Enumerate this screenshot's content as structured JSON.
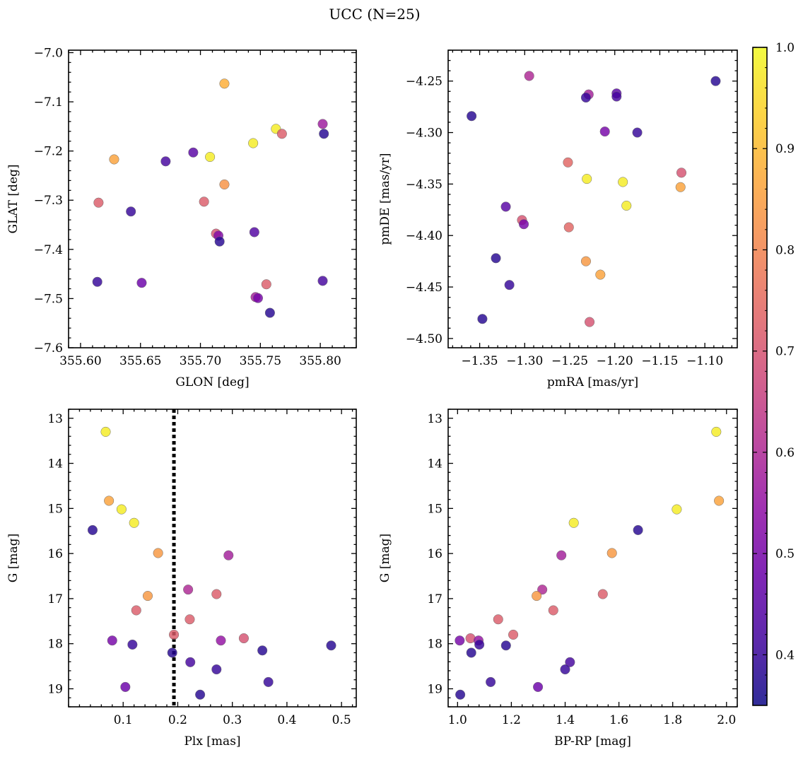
{
  "figure": {
    "title": "UCC (N=25)",
    "colorbar": {
      "colormap": "plasma",
      "range": [
        0.35,
        1.0
      ],
      "ticks": [
        0.4,
        0.5,
        0.6,
        0.7,
        0.8,
        0.9,
        1.0
      ],
      "tick_labels": [
        "0.4",
        "0.5",
        "0.6",
        "0.7",
        "0.8",
        "0.9",
        "1.0"
      ]
    }
  },
  "chart_data": [
    {
      "type": "scatter",
      "id": "glon-glat",
      "xlabel": "GLON [deg]",
      "ylabel": "GLAT [deg]",
      "xlim": [
        355.59,
        355.83
      ],
      "ylim": [
        -7.6,
        -6.995
      ],
      "y_inverted": false,
      "xticks": [
        355.6,
        355.65,
        355.7,
        355.75,
        355.8
      ],
      "xtick_labels": [
        "355.60",
        "355.65",
        "355.70",
        "355.75",
        "355.80"
      ],
      "yticks": [
        -7.0,
        -7.1,
        -7.2,
        -7.3,
        -7.4,
        -7.5,
        -7.6
      ],
      "ytick_labels": [
        "−7.0",
        "−7.1",
        "−7.2",
        "−7.3",
        "−7.4",
        "−7.5",
        "−7.6"
      ],
      "points": [
        {
          "x": 355.72,
          "y": -7.063,
          "c": 0.88
        },
        {
          "x": 355.763,
          "y": -7.155,
          "c": 0.98
        },
        {
          "x": 355.802,
          "y": -7.145,
          "c": 0.57
        },
        {
          "x": 355.768,
          "y": -7.165,
          "c": 0.72
        },
        {
          "x": 355.803,
          "y": -7.165,
          "c": 0.38
        },
        {
          "x": 355.744,
          "y": -7.184,
          "c": 0.98
        },
        {
          "x": 355.694,
          "y": -7.203,
          "c": 0.45
        },
        {
          "x": 355.708,
          "y": -7.212,
          "c": 0.98
        },
        {
          "x": 355.628,
          "y": -7.217,
          "c": 0.86
        },
        {
          "x": 355.671,
          "y": -7.221,
          "c": 0.42
        },
        {
          "x": 355.72,
          "y": -7.268,
          "c": 0.83
        },
        {
          "x": 355.703,
          "y": -7.303,
          "c": 0.72
        },
        {
          "x": 355.615,
          "y": -7.305,
          "c": 0.72
        },
        {
          "x": 355.642,
          "y": -7.323,
          "c": 0.4
        },
        {
          "x": 355.745,
          "y": -7.365,
          "c": 0.44
        },
        {
          "x": 355.713,
          "y": -7.368,
          "c": 0.7
        },
        {
          "x": 355.715,
          "y": -7.372,
          "c": 0.52
        },
        {
          "x": 355.716,
          "y": -7.384,
          "c": 0.38
        },
        {
          "x": 355.614,
          "y": -7.466,
          "c": 0.4
        },
        {
          "x": 355.651,
          "y": -7.468,
          "c": 0.48
        },
        {
          "x": 355.802,
          "y": -7.464,
          "c": 0.42
        },
        {
          "x": 355.755,
          "y": -7.471,
          "c": 0.72
        },
        {
          "x": 355.746,
          "y": -7.497,
          "c": 0.58
        },
        {
          "x": 355.748,
          "y": -7.499,
          "c": 0.5
        },
        {
          "x": 355.758,
          "y": -7.529,
          "c": 0.38
        }
      ]
    },
    {
      "type": "scatter",
      "id": "pm",
      "xlabel": "pmRA [mas/yr]",
      "ylabel": "pmDE [mas/yr]",
      "xlim": [
        -1.385,
        -1.064
      ],
      "ylim": [
        -4.509,
        -4.22
      ],
      "y_inverted": false,
      "xticks": [
        -1.35,
        -1.3,
        -1.25,
        -1.2,
        -1.15,
        -1.1
      ],
      "xtick_labels": [
        "−1.35",
        "−1.30",
        "−1.25",
        "−1.20",
        "−1.15",
        "−1.10"
      ],
      "yticks": [
        -4.25,
        -4.3,
        -4.35,
        -4.4,
        -4.45,
        -4.5
      ],
      "ytick_labels": [
        "−4.25",
        "−4.30",
        "−4.35",
        "−4.40",
        "−4.45",
        "−4.50"
      ],
      "points": [
        {
          "x": -1.295,
          "y": -4.245,
          "c": 0.6
        },
        {
          "x": -1.088,
          "y": -4.25,
          "c": 0.38
        },
        {
          "x": -1.229,
          "y": -4.263,
          "c": 0.58
        },
        {
          "x": -1.198,
          "y": -4.262,
          "c": 0.45
        },
        {
          "x": -1.198,
          "y": -4.265,
          "c": 0.42
        },
        {
          "x": -1.232,
          "y": -4.266,
          "c": 0.4
        },
        {
          "x": -1.359,
          "y": -4.284,
          "c": 0.38
        },
        {
          "x": -1.211,
          "y": -4.299,
          "c": 0.5
        },
        {
          "x": -1.175,
          "y": -4.3,
          "c": 0.4
        },
        {
          "x": -1.252,
          "y": -4.329,
          "c": 0.74
        },
        {
          "x": -1.126,
          "y": -4.339,
          "c": 0.7
        },
        {
          "x": -1.231,
          "y": -4.345,
          "c": 0.98
        },
        {
          "x": -1.191,
          "y": -4.348,
          "c": 0.98
        },
        {
          "x": -1.127,
          "y": -4.353,
          "c": 0.86
        },
        {
          "x": -1.187,
          "y": -4.371,
          "c": 0.98
        },
        {
          "x": -1.321,
          "y": -4.372,
          "c": 0.45
        },
        {
          "x": -1.303,
          "y": -4.385,
          "c": 0.7
        },
        {
          "x": -1.301,
          "y": -4.389,
          "c": 0.5
        },
        {
          "x": -1.251,
          "y": -4.392,
          "c": 0.74
        },
        {
          "x": -1.332,
          "y": -4.422,
          "c": 0.38
        },
        {
          "x": -1.232,
          "y": -4.425,
          "c": 0.84
        },
        {
          "x": -1.216,
          "y": -4.438,
          "c": 0.86
        },
        {
          "x": -1.317,
          "y": -4.448,
          "c": 0.4
        },
        {
          "x": -1.347,
          "y": -4.481,
          "c": 0.38
        },
        {
          "x": -1.228,
          "y": -4.484,
          "c": 0.7
        }
      ]
    },
    {
      "type": "scatter",
      "id": "plx-g",
      "xlabel": "Plx [mas]",
      "ylabel": "G [mag]",
      "xlim": [
        0.0,
        0.527
      ],
      "ylim": [
        19.4,
        12.8
      ],
      "y_inverted": true,
      "xticks": [
        0.1,
        0.2,
        0.3,
        0.4,
        0.5
      ],
      "xtick_labels": [
        "0.1",
        "0.2",
        "0.3",
        "0.4",
        "0.5"
      ],
      "yticks": [
        13,
        14,
        15,
        16,
        17,
        18,
        19
      ],
      "ytick_labels": [
        "13",
        "14",
        "15",
        "16",
        "17",
        "18",
        "19"
      ],
      "vline": {
        "x": 0.193,
        "style": "dotted",
        "color": "#000000"
      },
      "points": [
        {
          "x": 0.068,
          "y": 13.3,
          "c": 0.98
        },
        {
          "x": 0.074,
          "y": 14.83,
          "c": 0.86
        },
        {
          "x": 0.097,
          "y": 15.02,
          "c": 0.98
        },
        {
          "x": 0.12,
          "y": 15.32,
          "c": 0.98
        },
        {
          "x": 0.044,
          "y": 15.48,
          "c": 0.38
        },
        {
          "x": 0.164,
          "y": 15.99,
          "c": 0.84
        },
        {
          "x": 0.293,
          "y": 16.04,
          "c": 0.58
        },
        {
          "x": 0.219,
          "y": 16.8,
          "c": 0.6
        },
        {
          "x": 0.271,
          "y": 16.9,
          "c": 0.72
        },
        {
          "x": 0.145,
          "y": 16.94,
          "c": 0.84
        },
        {
          "x": 0.124,
          "y": 17.26,
          "c": 0.72
        },
        {
          "x": 0.222,
          "y": 17.46,
          "c": 0.72
        },
        {
          "x": 0.193,
          "y": 17.8,
          "c": 0.72
        },
        {
          "x": 0.321,
          "y": 17.88,
          "c": 0.7
        },
        {
          "x": 0.08,
          "y": 17.93,
          "c": 0.5
        },
        {
          "x": 0.279,
          "y": 17.93,
          "c": 0.55
        },
        {
          "x": 0.117,
          "y": 18.02,
          "c": 0.4
        },
        {
          "x": 0.481,
          "y": 18.04,
          "c": 0.38
        },
        {
          "x": 0.355,
          "y": 18.15,
          "c": 0.38
        },
        {
          "x": 0.19,
          "y": 18.2,
          "c": 0.38
        },
        {
          "x": 0.223,
          "y": 18.41,
          "c": 0.42
        },
        {
          "x": 0.271,
          "y": 18.57,
          "c": 0.4
        },
        {
          "x": 0.366,
          "y": 18.85,
          "c": 0.4
        },
        {
          "x": 0.104,
          "y": 18.96,
          "c": 0.48
        },
        {
          "x": 0.241,
          "y": 19.13,
          "c": 0.38
        }
      ]
    },
    {
      "type": "scatter",
      "id": "cmd",
      "xlabel": "BP-RP [mag]",
      "ylabel": "G [mag]",
      "xlim": [
        0.965,
        2.04
      ],
      "ylim": [
        19.4,
        12.8
      ],
      "y_inverted": true,
      "xticks": [
        1.0,
        1.2,
        1.4,
        1.6,
        1.8,
        2.0
      ],
      "xtick_labels": [
        "1.0",
        "1.2",
        "1.4",
        "1.6",
        "1.8",
        "2.0"
      ],
      "yticks": [
        13,
        14,
        15,
        16,
        17,
        18,
        19
      ],
      "ytick_labels": [
        "13",
        "14",
        "15",
        "16",
        "17",
        "18",
        "19"
      ],
      "points": [
        {
          "x": 1.962,
          "y": 13.3,
          "c": 0.98
        },
        {
          "x": 1.972,
          "y": 14.83,
          "c": 0.86
        },
        {
          "x": 1.815,
          "y": 15.02,
          "c": 0.98
        },
        {
          "x": 1.432,
          "y": 15.32,
          "c": 0.98
        },
        {
          "x": 1.671,
          "y": 15.48,
          "c": 0.38
        },
        {
          "x": 1.386,
          "y": 16.04,
          "c": 0.58
        },
        {
          "x": 1.574,
          "y": 15.99,
          "c": 0.84
        },
        {
          "x": 1.315,
          "y": 16.8,
          "c": 0.6
        },
        {
          "x": 1.54,
          "y": 16.9,
          "c": 0.72
        },
        {
          "x": 1.294,
          "y": 16.94,
          "c": 0.84
        },
        {
          "x": 1.356,
          "y": 17.26,
          "c": 0.72
        },
        {
          "x": 1.151,
          "y": 17.46,
          "c": 0.72
        },
        {
          "x": 1.207,
          "y": 17.8,
          "c": 0.72
        },
        {
          "x": 1.048,
          "y": 17.88,
          "c": 0.7
        },
        {
          "x": 1.008,
          "y": 17.93,
          "c": 0.5
        },
        {
          "x": 1.078,
          "y": 17.93,
          "c": 0.55
        },
        {
          "x": 1.081,
          "y": 18.02,
          "c": 0.4
        },
        {
          "x": 1.18,
          "y": 18.04,
          "c": 0.38
        },
        {
          "x": 1.051,
          "y": 18.2,
          "c": 0.38
        },
        {
          "x": 1.418,
          "y": 18.41,
          "c": 0.42
        },
        {
          "x": 1.4,
          "y": 18.57,
          "c": 0.4
        },
        {
          "x": 1.123,
          "y": 18.85,
          "c": 0.4
        },
        {
          "x": 1.299,
          "y": 18.96,
          "c": 0.48
        },
        {
          "x": 1.01,
          "y": 19.13,
          "c": 0.38
        }
      ]
    }
  ]
}
